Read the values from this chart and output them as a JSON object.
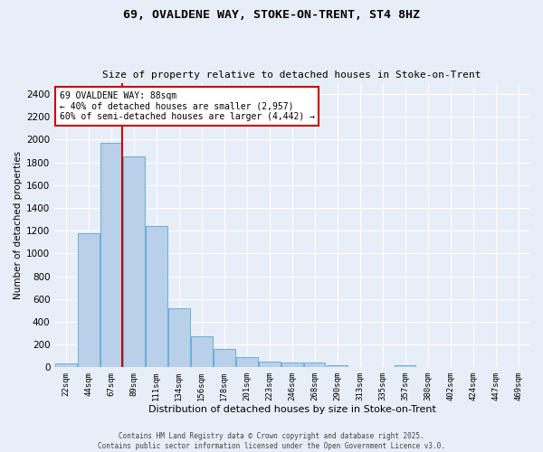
{
  "title_line1": "69, OVALDENE WAY, STOKE-ON-TRENT, ST4 8HZ",
  "title_line2": "Size of property relative to detached houses in Stoke-on-Trent",
  "xlabel": "Distribution of detached houses by size in Stoke-on-Trent",
  "ylabel": "Number of detached properties",
  "categories": [
    "22sqm",
    "44sqm",
    "67sqm",
    "89sqm",
    "111sqm",
    "134sqm",
    "156sqm",
    "178sqm",
    "201sqm",
    "223sqm",
    "246sqm",
    "268sqm",
    "290sqm",
    "313sqm",
    "335sqm",
    "357sqm",
    "380sqm",
    "402sqm",
    "424sqm",
    "447sqm",
    "469sqm"
  ],
  "values": [
    30,
    1175,
    1975,
    1855,
    1240,
    515,
    275,
    157,
    90,
    50,
    42,
    38,
    20,
    0,
    0,
    15,
    0,
    0,
    0,
    0,
    0
  ],
  "bar_color": "#b8d0ea",
  "bar_edge_color": "#6aaed6",
  "background_color": "#e8eef8",
  "grid_color": "#ffffff",
  "subject_line_color": "#cc0000",
  "annotation_text": "69 OVALDENE WAY: 88sqm\n← 40% of detached houses are smaller (2,957)\n60% of semi-detached houses are larger (4,442) →",
  "annotation_box_color": "#ffffff",
  "annotation_box_edge_color": "#cc0000",
  "footer_line1": "Contains HM Land Registry data © Crown copyright and database right 2025.",
  "footer_line2": "Contains public sector information licensed under the Open Government Licence v3.0.",
  "ylim": [
    0,
    2500
  ],
  "yticks": [
    0,
    200,
    400,
    600,
    800,
    1000,
    1200,
    1400,
    1600,
    1800,
    2000,
    2200,
    2400
  ]
}
